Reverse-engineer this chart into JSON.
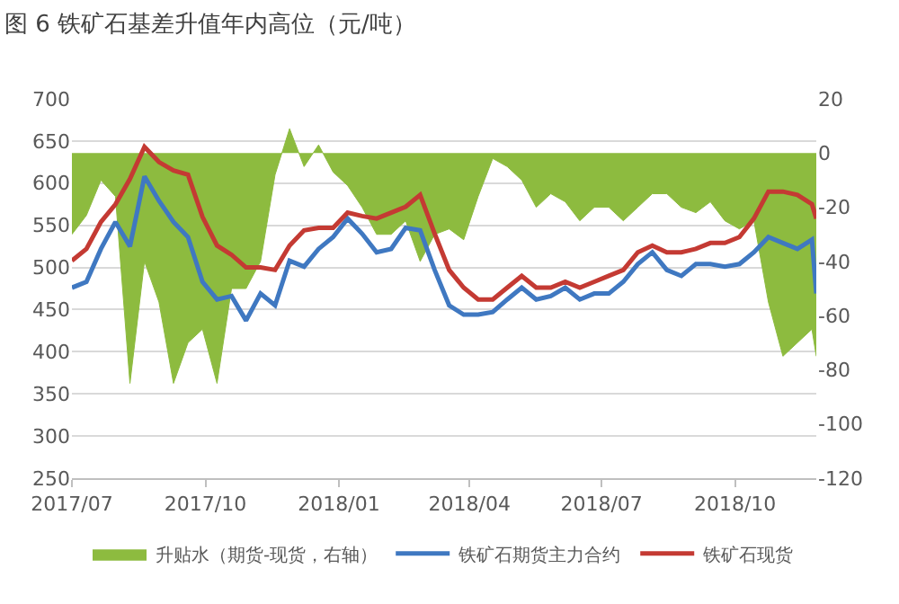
{
  "chart_data": {
    "type": "line",
    "title": "图 6 铁矿石基差升值年内高位（元/吨）",
    "x": [
      "2017-07-01",
      "2017-07-11",
      "2017-07-21",
      "2017-07-31",
      "2017-08-10",
      "2017-08-20",
      "2017-08-30",
      "2017-09-09",
      "2017-09-19",
      "2017-09-29",
      "2017-10-09",
      "2017-10-19",
      "2017-10-29",
      "2017-11-08",
      "2017-11-18",
      "2017-11-28",
      "2017-12-08",
      "2017-12-18",
      "2017-12-28",
      "2018-01-07",
      "2018-01-17",
      "2018-01-27",
      "2018-02-06",
      "2018-02-16",
      "2018-02-26",
      "2018-03-08",
      "2018-03-18",
      "2018-03-28",
      "2018-04-07",
      "2018-04-17",
      "2018-04-27",
      "2018-05-07",
      "2018-05-17",
      "2018-05-27",
      "2018-06-06",
      "2018-06-16",
      "2018-06-26",
      "2018-07-06",
      "2018-07-16",
      "2018-07-26",
      "2018-08-05",
      "2018-08-15",
      "2018-08-25",
      "2018-09-04",
      "2018-09-14",
      "2018-09-24",
      "2018-10-04",
      "2018-10-14",
      "2018-10-24",
      "2018-11-03",
      "2018-11-13",
      "2018-11-23",
      "2018-11-26"
    ],
    "series": [
      {
        "name": "升贴水（期货-现货，右轴）",
        "type": "area",
        "axis": "y2",
        "color": "#8dbb3f",
        "values": [
          -30,
          -23,
          -10,
          -16,
          -85,
          -40,
          -55,
          -85,
          -70,
          -65,
          -85,
          -50,
          -50,
          -40,
          -8,
          9,
          -5,
          3,
          -7,
          -12,
          -20,
          -30,
          -30,
          -25,
          -40,
          -30,
          -28,
          -32,
          -16,
          -2,
          -5,
          -10,
          -20,
          -15,
          -18,
          -25,
          -20,
          -20,
          -25,
          -20,
          -15,
          -15,
          -20,
          -22,
          -18,
          -25,
          -28,
          -25,
          -55,
          -75,
          -70,
          -65,
          -75
        ]
      },
      {
        "name": "铁矿石期货主力合约",
        "color": "#3f78c1",
        "values": [
          476,
          483,
          522,
          554,
          525,
          608,
          579,
          554,
          536,
          483,
          462,
          466,
          437,
          469,
          455,
          508,
          501,
          522,
          536,
          558,
          540,
          518,
          522,
          547,
          544,
          497,
          455,
          444,
          444,
          447,
          462,
          476,
          462,
          466,
          476,
          462,
          469,
          469,
          483,
          504,
          518,
          497,
          490,
          504,
          504,
          501,
          504,
          518,
          536,
          529,
          522,
          533,
          469
        ]
      },
      {
        "name": "铁矿石现货",
        "color": "#c43a33",
        "values": [
          508,
          522,
          554,
          575,
          605,
          643,
          625,
          615,
          610,
          560,
          526,
          515,
          500,
          500,
          497,
          526,
          544,
          547,
          547,
          565,
          561,
          558,
          565,
          572,
          586,
          540,
          497,
          476,
          462,
          462,
          476,
          490,
          476,
          476,
          483,
          476,
          483,
          490,
          497,
          518,
          526,
          518,
          518,
          522,
          529,
          529,
          536,
          558,
          590,
          590,
          586,
          575,
          558
        ]
      }
    ],
    "xlim": [
      "2017-07-01",
      "2018-11-26"
    ],
    "xticks": [
      {
        "value": "2017-07-01",
        "label": "2017/07"
      },
      {
        "value": "2017-10-01",
        "label": "2017/10"
      },
      {
        "value": "2018-01-01",
        "label": "2018/01"
      },
      {
        "value": "2018-04-01",
        "label": "2018/04"
      },
      {
        "value": "2018-07-01",
        "label": "2018/07"
      },
      {
        "value": "2018-10-01",
        "label": "2018/10"
      }
    ],
    "ylim": [
      250,
      700
    ],
    "yticks": [
      250,
      300,
      350,
      400,
      450,
      500,
      550,
      600,
      650,
      700
    ],
    "y2lim": [
      -120,
      20
    ],
    "y2ticks": [
      -120,
      -100,
      -80,
      -60,
      -40,
      -20,
      0,
      20
    ],
    "grid": "y",
    "legend": "bottom",
    "line_style": "solid",
    "marker": "none"
  }
}
